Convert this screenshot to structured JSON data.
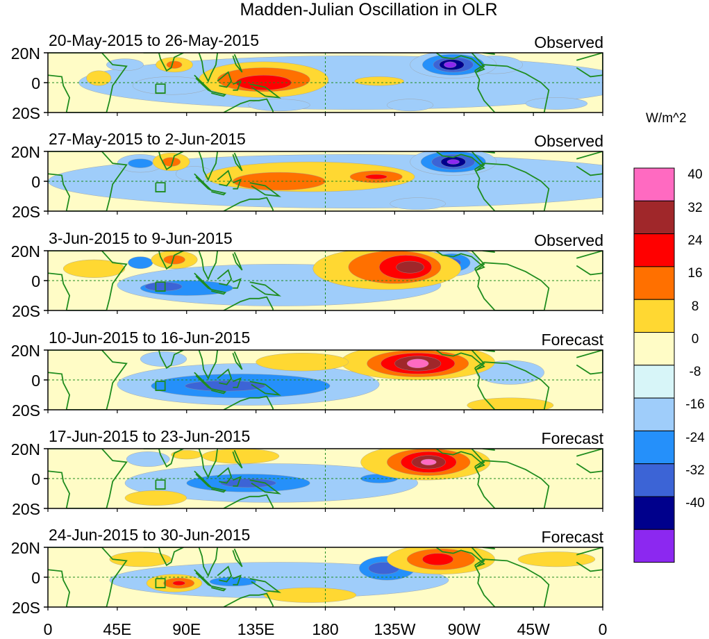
{
  "title": "Madden-Julian Oscillation in OLR",
  "units": "W/m^2",
  "lat_labels": [
    "20N",
    "0",
    "20S"
  ],
  "lon_labels": [
    "0",
    "45E",
    "90E",
    "135E",
    "180",
    "135W",
    "90W",
    "45W",
    "0"
  ],
  "colorbar": {
    "tick_labels": [
      "40",
      "32",
      "24",
      "16",
      "8",
      "0",
      "-8",
      "-16",
      "-24",
      "-32",
      "-40"
    ],
    "colors": [
      "#ff6ac1",
      "#a0272a",
      "#ff0000",
      "#ff7000",
      "#ffd832",
      "#fffcc6",
      "#d7f5f8",
      "#9fcdfa",
      "#2590fa",
      "#3c64d6",
      "#00008c",
      "#8c28f0"
    ]
  },
  "colors": {
    "land": "#1e8c1e",
    "reference_line": "#1e8c1e"
  },
  "panels": [
    {
      "label": "20-May-2015 to 26-May-2015",
      "type": "Observed"
    },
    {
      "label": "27-May-2015 to 2-Jun-2015",
      "type": "Observed"
    },
    {
      "label": "3-Jun-2015 to 9-Jun-2015",
      "type": "Observed"
    },
    {
      "label": "10-Jun-2015 to 16-Jun-2015",
      "type": "Forecast"
    },
    {
      "label": "17-Jun-2015 to 23-Jun-2015",
      "type": "Forecast"
    },
    {
      "label": "24-Jun-2015 to 30-Jun-2015",
      "type": "Forecast"
    }
  ],
  "anomalies": [
    [
      {
        "lon": 200,
        "lat": 0,
        "value": -8,
        "rlon": 180,
        "rlat": 18
      },
      {
        "lon": 80,
        "lat": -2,
        "value": -8,
        "rlon": 25,
        "rlat": 6
      },
      {
        "lon": 50,
        "lat": 12,
        "value": -8,
        "rlon": 12,
        "rlat": 4
      },
      {
        "lon": 235,
        "lat": -15,
        "value": -8,
        "rlon": 15,
        "rlat": 4
      },
      {
        "lon": 150,
        "lat": -15,
        "value": -8,
        "rlon": 20,
        "rlat": 4
      },
      {
        "lon": 330,
        "lat": -14,
        "value": -8,
        "rlon": 20,
        "rlat": 4
      },
      {
        "lon": 290,
        "lat": 12,
        "value": -8,
        "rlon": 18,
        "rlat": 6
      },
      {
        "lon": 263,
        "lat": 12,
        "value": -8,
        "rlon": 28,
        "rlat": 9
      },
      {
        "lon": 263,
        "lat": 12,
        "value": -16,
        "rlon": 20,
        "rlat": 7
      },
      {
        "lon": 263,
        "lat": 12,
        "value": -24,
        "rlon": 13,
        "rlat": 5
      },
      {
        "lon": 262,
        "lat": 12,
        "value": -32,
        "rlon": 8,
        "rlat": 3.5
      },
      {
        "lon": 261,
        "lat": 12,
        "value": -40,
        "rlon": 4,
        "rlat": 2
      },
      {
        "lon": 140,
        "lat": 2,
        "value": 8,
        "rlon": 42,
        "rlat": 12
      },
      {
        "lon": 140,
        "lat": 2,
        "value": 16,
        "rlon": 30,
        "rlat": 8
      },
      {
        "lon": 140,
        "lat": 0,
        "value": 24,
        "rlon": 18,
        "rlat": 5
      },
      {
        "lon": 82,
        "lat": 12,
        "value": 8,
        "rlon": 12,
        "rlat": 5
      },
      {
        "lon": 82,
        "lat": 12,
        "value": 16,
        "rlon": 5,
        "rlat": 2.5
      },
      {
        "lon": 215,
        "lat": 1,
        "value": 8,
        "rlon": 16,
        "rlat": 3
      },
      {
        "lon": 33,
        "lat": 3,
        "value": 8,
        "rlon": 8,
        "rlat": 5
      }
    ],
    [
      {
        "lon": 200,
        "lat": 0,
        "value": -8,
        "rlon": 200,
        "rlat": 18
      },
      {
        "lon": 60,
        "lat": 12,
        "value": -8,
        "rlon": 15,
        "rlat": 6
      },
      {
        "lon": 60,
        "lat": 12,
        "value": -16,
        "rlon": 8,
        "rlat": 3
      },
      {
        "lon": 95,
        "lat": 5,
        "value": -8,
        "rlon": 12,
        "rlat": 5
      },
      {
        "lon": 240,
        "lat": -15,
        "value": -8,
        "rlon": 18,
        "rlat": 4
      },
      {
        "lon": 263,
        "lat": 13,
        "value": -8,
        "rlon": 28,
        "rlat": 9
      },
      {
        "lon": 263,
        "lat": 13,
        "value": -16,
        "rlon": 21,
        "rlat": 7
      },
      {
        "lon": 263,
        "lat": 13,
        "value": -24,
        "rlon": 14,
        "rlat": 5
      },
      {
        "lon": 263,
        "lat": 13,
        "value": -32,
        "rlon": 8,
        "rlat": 3.5
      },
      {
        "lon": 263,
        "lat": 13,
        "value": -40,
        "rlon": 4,
        "rlat": 1.6
      },
      {
        "lon": 170,
        "lat": 3,
        "value": 8,
        "rlon": 68,
        "rlat": 10
      },
      {
        "lon": 150,
        "lat": 0,
        "value": 16,
        "rlon": 30,
        "rlat": 6
      },
      {
        "lon": 213,
        "lat": 3,
        "value": 16,
        "rlon": 17,
        "rlat": 4
      },
      {
        "lon": 213,
        "lat": 3,
        "value": 24,
        "rlon": 7,
        "rlat": 1.6
      },
      {
        "lon": 80,
        "lat": 13,
        "value": 8,
        "rlon": 12,
        "rlat": 6
      },
      {
        "lon": 80,
        "lat": 13,
        "value": 16,
        "rlon": 6,
        "rlat": 3
      }
    ],
    [
      {
        "lon": 150,
        "lat": -3,
        "value": -8,
        "rlon": 105,
        "rlat": 14
      },
      {
        "lon": 90,
        "lat": -5,
        "value": -16,
        "rlon": 30,
        "rlat": 5
      },
      {
        "lon": 75,
        "lat": -4,
        "value": -24,
        "rlon": 12,
        "rlat": 3
      },
      {
        "lon": 60,
        "lat": 12,
        "value": -16,
        "rlon": 8,
        "rlat": 4
      },
      {
        "lon": 262,
        "lat": 12,
        "value": -8,
        "rlon": 18,
        "rlat": 9
      },
      {
        "lon": 262,
        "lat": 12,
        "value": -16,
        "rlon": 12,
        "rlat": 6
      },
      {
        "lon": 262,
        "lat": 12,
        "value": -24,
        "rlon": 6,
        "rlat": 3
      },
      {
        "lon": 220,
        "lat": 8,
        "value": 8,
        "rlon": 48,
        "rlat": 14
      },
      {
        "lon": 225,
        "lat": 9,
        "value": 16,
        "rlon": 30,
        "rlat": 11
      },
      {
        "lon": 232,
        "lat": 9,
        "value": 24,
        "rlon": 17,
        "rlat": 8
      },
      {
        "lon": 235,
        "lat": 9,
        "value": 32,
        "rlon": 9,
        "rlat": 4
      },
      {
        "lon": 82,
        "lat": 14,
        "value": 8,
        "rlon": 15,
        "rlat": 6
      },
      {
        "lon": 82,
        "lat": 14,
        "value": 16,
        "rlon": 7,
        "rlat": 3
      },
      {
        "lon": 30,
        "lat": 8,
        "value": 8,
        "rlon": 20,
        "rlat": 6
      }
    ],
    [
      {
        "lon": 130,
        "lat": -3,
        "value": -8,
        "rlon": 85,
        "rlat": 14
      },
      {
        "lon": 125,
        "lat": -4,
        "value": -16,
        "rlon": 58,
        "rlat": 8
      },
      {
        "lon": 115,
        "lat": -4,
        "value": -24,
        "rlon": 26,
        "rlat": 3.5
      },
      {
        "lon": 75,
        "lat": 14,
        "value": -8,
        "rlon": 15,
        "rlat": 5
      },
      {
        "lon": 300,
        "lat": 5,
        "value": -8,
        "rlon": 22,
        "rlat": 8
      },
      {
        "lon": 240,
        "lat": 12,
        "value": 8,
        "rlon": 50,
        "rlat": 12
      },
      {
        "lon": 240,
        "lat": 11,
        "value": 16,
        "rlon": 33,
        "rlat": 9
      },
      {
        "lon": 240,
        "lat": 11,
        "value": 24,
        "rlon": 24,
        "rlat": 7
      },
      {
        "lon": 240,
        "lat": 11,
        "value": 32,
        "rlon": 15,
        "rlat": 5
      },
      {
        "lon": 240,
        "lat": 11,
        "value": 40,
        "rlon": 7,
        "rlat": 3
      },
      {
        "lon": 300,
        "lat": -17,
        "value": 8,
        "rlon": 28,
        "rlat": 5
      },
      {
        "lon": 165,
        "lat": 12,
        "value": 8,
        "rlon": 30,
        "rlat": 6
      }
    ],
    [
      {
        "lon": 145,
        "lat": -3,
        "value": -8,
        "rlon": 95,
        "rlat": 13
      },
      {
        "lon": 130,
        "lat": -3,
        "value": -16,
        "rlon": 40,
        "rlat": 6
      },
      {
        "lon": 130,
        "lat": -3,
        "value": -24,
        "rlon": 18,
        "rlat": 3
      },
      {
        "lon": 215,
        "lat": 0,
        "value": -16,
        "rlon": 12,
        "rlat": 3
      },
      {
        "lon": 65,
        "lat": 13,
        "value": -8,
        "rlon": 14,
        "rlat": 5
      },
      {
        "lon": 245,
        "lat": 11,
        "value": 8,
        "rlon": 42,
        "rlat": 12
      },
      {
        "lon": 247,
        "lat": 11,
        "value": 16,
        "rlon": 27,
        "rlat": 9
      },
      {
        "lon": 247,
        "lat": 11,
        "value": 24,
        "rlon": 18,
        "rlat": 7
      },
      {
        "lon": 247,
        "lat": 11,
        "value": 32,
        "rlon": 11,
        "rlat": 4.5
      },
      {
        "lon": 247,
        "lat": 11,
        "value": 40,
        "rlon": 5,
        "rlat": 2
      },
      {
        "lon": 70,
        "lat": -13,
        "value": 8,
        "rlon": 20,
        "rlat": 5
      },
      {
        "lon": 125,
        "lat": 15,
        "value": 8,
        "rlon": 25,
        "rlat": 5
      },
      {
        "lon": 90,
        "lat": 16,
        "value": 8,
        "rlon": 10,
        "rlat": 3
      }
    ],
    [
      {
        "lon": 150,
        "lat": -2,
        "value": -8,
        "rlon": 110,
        "rlat": 12
      },
      {
        "lon": 220,
        "lat": 6,
        "value": -16,
        "rlon": 18,
        "rlat": 8
      },
      {
        "lon": 218,
        "lat": 6,
        "value": -24,
        "rlon": 10,
        "rlat": 4
      },
      {
        "lon": 120,
        "lat": -3,
        "value": -16,
        "rlon": 15,
        "rlat": 3
      },
      {
        "lon": 255,
        "lat": 12,
        "value": 8,
        "rlon": 35,
        "rlat": 10
      },
      {
        "lon": 255,
        "lat": 12,
        "value": 16,
        "rlon": 22,
        "rlat": 7
      },
      {
        "lon": 253,
        "lat": 12,
        "value": 24,
        "rlon": 10,
        "rlat": 4
      },
      {
        "lon": 82,
        "lat": -4,
        "value": 8,
        "rlon": 18,
        "rlat": 6
      },
      {
        "lon": 85,
        "lat": -4,
        "value": 16,
        "rlon": 10,
        "rlat": 3.5
      },
      {
        "lon": 85,
        "lat": -4,
        "value": 24,
        "rlon": 4,
        "rlat": 1.5
      },
      {
        "lon": 170,
        "lat": -12,
        "value": 8,
        "rlon": 30,
        "rlat": 5
      },
      {
        "lon": 60,
        "lat": 12,
        "value": 8,
        "rlon": 20,
        "rlat": 5
      },
      {
        "lon": 330,
        "lat": 12,
        "value": 8,
        "rlon": 25,
        "rlat": 5
      }
    ]
  ]
}
